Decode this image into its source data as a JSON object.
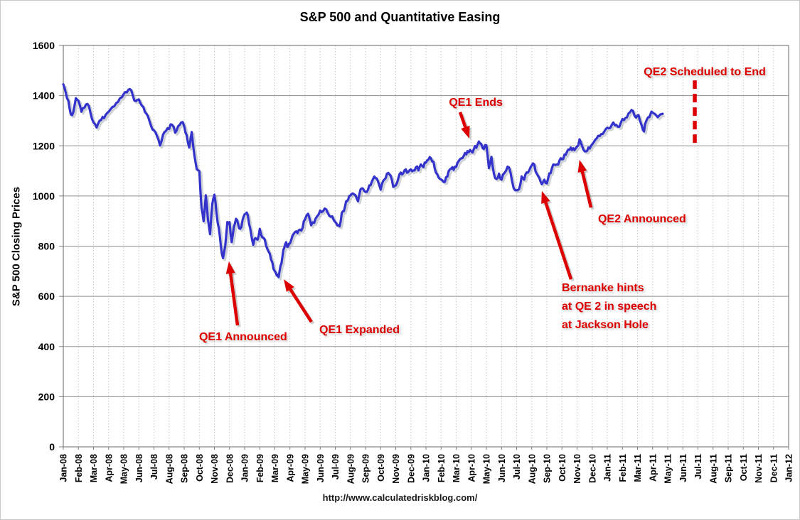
{
  "title": "S&P 500 and Quantitative Easing",
  "source_url": "http://www.calculatedriskblog.com/",
  "chart_data": {
    "type": "line",
    "title": "S&P 500 and Quantitative Easing",
    "xlabel": "",
    "ylabel": "S&P 500 Closing Prices",
    "ylim": [
      0,
      1600
    ],
    "ytick_step": 200,
    "yticks": [
      0,
      200,
      400,
      600,
      800,
      1000,
      1200,
      1400,
      1600
    ],
    "grid": "on",
    "legend": "none",
    "line_color": "#3333CC",
    "annotation_color": "#DD0000",
    "x_labels": [
      "Jan-08",
      "Feb-08",
      "Mar-08",
      "Apr-08",
      "May-08",
      "Jun-08",
      "Jul-08",
      "Aug-08",
      "Sep-08",
      "Oct-08",
      "Nov-08",
      "Dec-08",
      "Jan-09",
      "Feb-09",
      "Mar-09",
      "Apr-09",
      "May-09",
      "Jun-09",
      "Jul-09",
      "Aug-09",
      "Sep-09",
      "Oct-09",
      "Nov-09",
      "Dec-09",
      "Jan-10",
      "Feb-10",
      "Mar-10",
      "Apr-10",
      "May-10",
      "Jun-10",
      "Jul-10",
      "Aug-10",
      "Sep-10",
      "Oct-10",
      "Nov-10",
      "Dec-10",
      "Jan-11",
      "Feb-11",
      "Mar-11",
      "Apr-11",
      "May-11",
      "Jun-11",
      "Jul-11",
      "Aug-11",
      "Sep-11",
      "Oct-11",
      "Nov-11",
      "Dec-11",
      "Jan-12"
    ],
    "series": [
      {
        "name": "S&P 500 Closing Prices",
        "units": "index points",
        "note": "approx weekly closes, arrays grouped per month starting Jan-08; line ends mid Apr-11",
        "monthly_values": [
          [
            1445,
            1411,
            1380,
            1325,
            1335,
            1390
          ],
          [
            1380,
            1336,
            1352,
            1367,
            1330
          ],
          [
            1293,
            1273,
            1300,
            1315,
            1323
          ],
          [
            1336,
            1355,
            1370,
            1390
          ],
          [
            1407,
            1413,
            1426,
            1400,
            1378
          ],
          [
            1385,
            1360,
            1335,
            1318,
            1280
          ],
          [
            1262,
            1239,
            1201,
            1245,
            1260
          ],
          [
            1267,
            1284,
            1252,
            1278,
            1293
          ],
          [
            1278,
            1242,
            1193,
            1255,
            1165,
            1106
          ],
          [
            1100,
            955,
            899,
            1003,
            907,
            848,
            968
          ],
          [
            1005,
            930,
            873,
            800,
            752,
            800,
            896
          ],
          [
            896,
            816,
            876,
            909,
            888,
            869,
            903
          ],
          [
            927,
            934,
            890,
            850,
            805,
            832,
            826
          ],
          [
            869,
            835,
            827,
            789,
            770,
            735
          ],
          [
            700,
            683,
            676,
            722,
            757,
            794,
            816,
            798
          ],
          [
            811,
            842,
            856,
            852,
            866,
            873
          ],
          [
            907,
            929,
            883,
            893,
            919
          ],
          [
            942,
            940,
            946,
            921,
            919
          ],
          [
            896,
            882,
            879,
            932,
            940,
            979,
            987
          ],
          [
            1002,
            1010,
            1004,
            979,
            1026,
            1029
          ],
          [
            1016,
            1025,
            1043,
            1068,
            1071,
            1057
          ],
          [
            1025,
            1060,
            1071,
            1092,
            1080,
            1036
          ],
          [
            1042,
            1069,
            1093,
            1091,
            1106,
            1096
          ],
          [
            1106,
            1102,
            1114,
            1102,
            1126,
            1115
          ],
          [
            1133,
            1145,
            1150,
            1137,
            1092,
            1074
          ],
          [
            1066,
            1056,
            1075,
            1099,
            1109,
            1104
          ],
          [
            1116,
            1139,
            1150,
            1160,
            1166,
            1174
          ],
          [
            1178,
            1187,
            1192,
            1217,
            1207,
            1187
          ],
          [
            1202,
            1111,
            1156,
            1088,
            1068,
            1089
          ],
          [
            1065,
            1092,
            1117,
            1092,
            1031
          ],
          [
            1023,
            1028,
            1078,
            1065,
            1094,
            1102
          ],
          [
            1122,
            1126,
            1089,
            1072,
            1047,
            1065
          ],
          [
            1050,
            1090,
            1110,
            1125,
            1126,
            1141
          ],
          [
            1146,
            1165,
            1176,
            1184,
            1183,
            1183
          ],
          [
            1197,
            1226,
            1199,
            1178,
            1180,
            1189
          ],
          [
            1206,
            1224,
            1240,
            1247,
            1257
          ],
          [
            1272,
            1272,
            1293,
            1283,
            1276
          ],
          [
            1307,
            1311,
            1329,
            1343,
            1320
          ],
          [
            1321,
            1304,
            1279,
            1257,
            1298,
            1314,
            1326
          ],
          [
            1332,
            1314,
            1328
          ]
        ]
      }
    ],
    "annotations": [
      {
        "id": "qe1-announced",
        "lines": [
          "QE1 Announced"
        ],
        "anchor": "center",
        "text_at": [
          11.9,
          436
        ],
        "arrow": {
          "from": [
            11.53,
            484
          ],
          "to": [
            10.96,
            739
          ]
        }
      },
      {
        "id": "qe1-expanded",
        "lines": [
          "QE1 Expanded"
        ],
        "anchor": "center",
        "text_at": [
          19.6,
          464
        ],
        "arrow": {
          "from": [
            16.42,
            498
          ],
          "to": [
            14.59,
            668
          ]
        }
      },
      {
        "id": "qe1-ends",
        "lines": [
          "QE1 Ends"
        ],
        "anchor": "center",
        "text_at": [
          27.3,
          1371
        ],
        "arrow": {
          "from": [
            26.26,
            1334
          ],
          "to": [
            26.87,
            1229
          ]
        }
      },
      {
        "id": "qe2-announced",
        "lines": [
          "QE2 Announced"
        ],
        "anchor": "center",
        "text_at": [
          38.3,
          906
        ],
        "arrow": {
          "from": [
            34.92,
            954
          ],
          "to": [
            34.16,
            1144
          ]
        }
      },
      {
        "id": "bernanke-jackson-hole",
        "lines": [
          "Bernanke hints",
          "at QE 2 in speech",
          "at Jackson Hole"
        ],
        "anchor": "left-top",
        "text_at": [
          32.99,
          668
        ],
        "arrow": {
          "from": [
            33.6,
            668
          ],
          "to": [
            31.67,
            1020
          ]
        }
      },
      {
        "id": "qe2-scheduled-to-end",
        "lines": [
          "QE2 Scheduled to End"
        ],
        "anchor": "center",
        "text_at": [
          42.45,
          1493
        ],
        "dashed_line": {
          "month": 41.79,
          "value_from": 1461,
          "value_to": 1201
        }
      }
    ]
  }
}
